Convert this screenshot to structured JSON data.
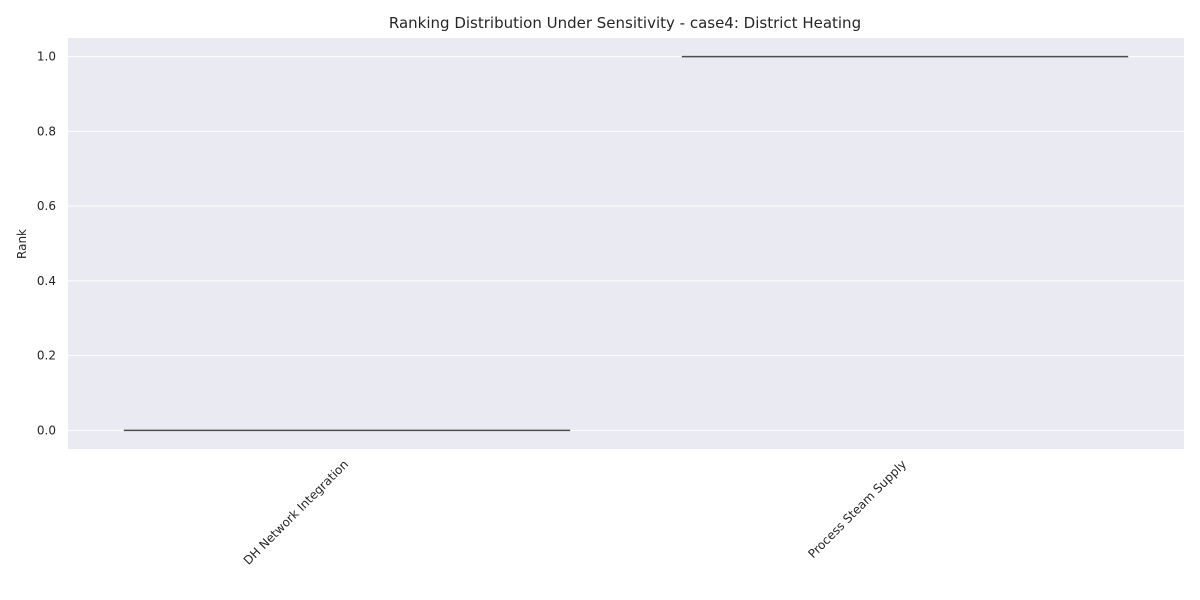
{
  "chart_data": {
    "type": "box",
    "title": "Ranking Distribution Under Sensitivity - case4: District Heating",
    "xlabel": "",
    "ylabel": "Rank",
    "categories": [
      "DH Network Integration",
      "Process Steam Supply"
    ],
    "values": [
      0,
      1
    ],
    "ylim": [
      -0.05,
      1.05
    ],
    "yticks": [
      "0.0",
      "0.2",
      "0.4",
      "0.6",
      "0.8",
      "1.0"
    ],
    "grid": true,
    "colors": {
      "plot_background": "#eaeaf2",
      "grid": "#ffffff",
      "median_line": "#4d4d4d",
      "text": "#262626"
    }
  }
}
